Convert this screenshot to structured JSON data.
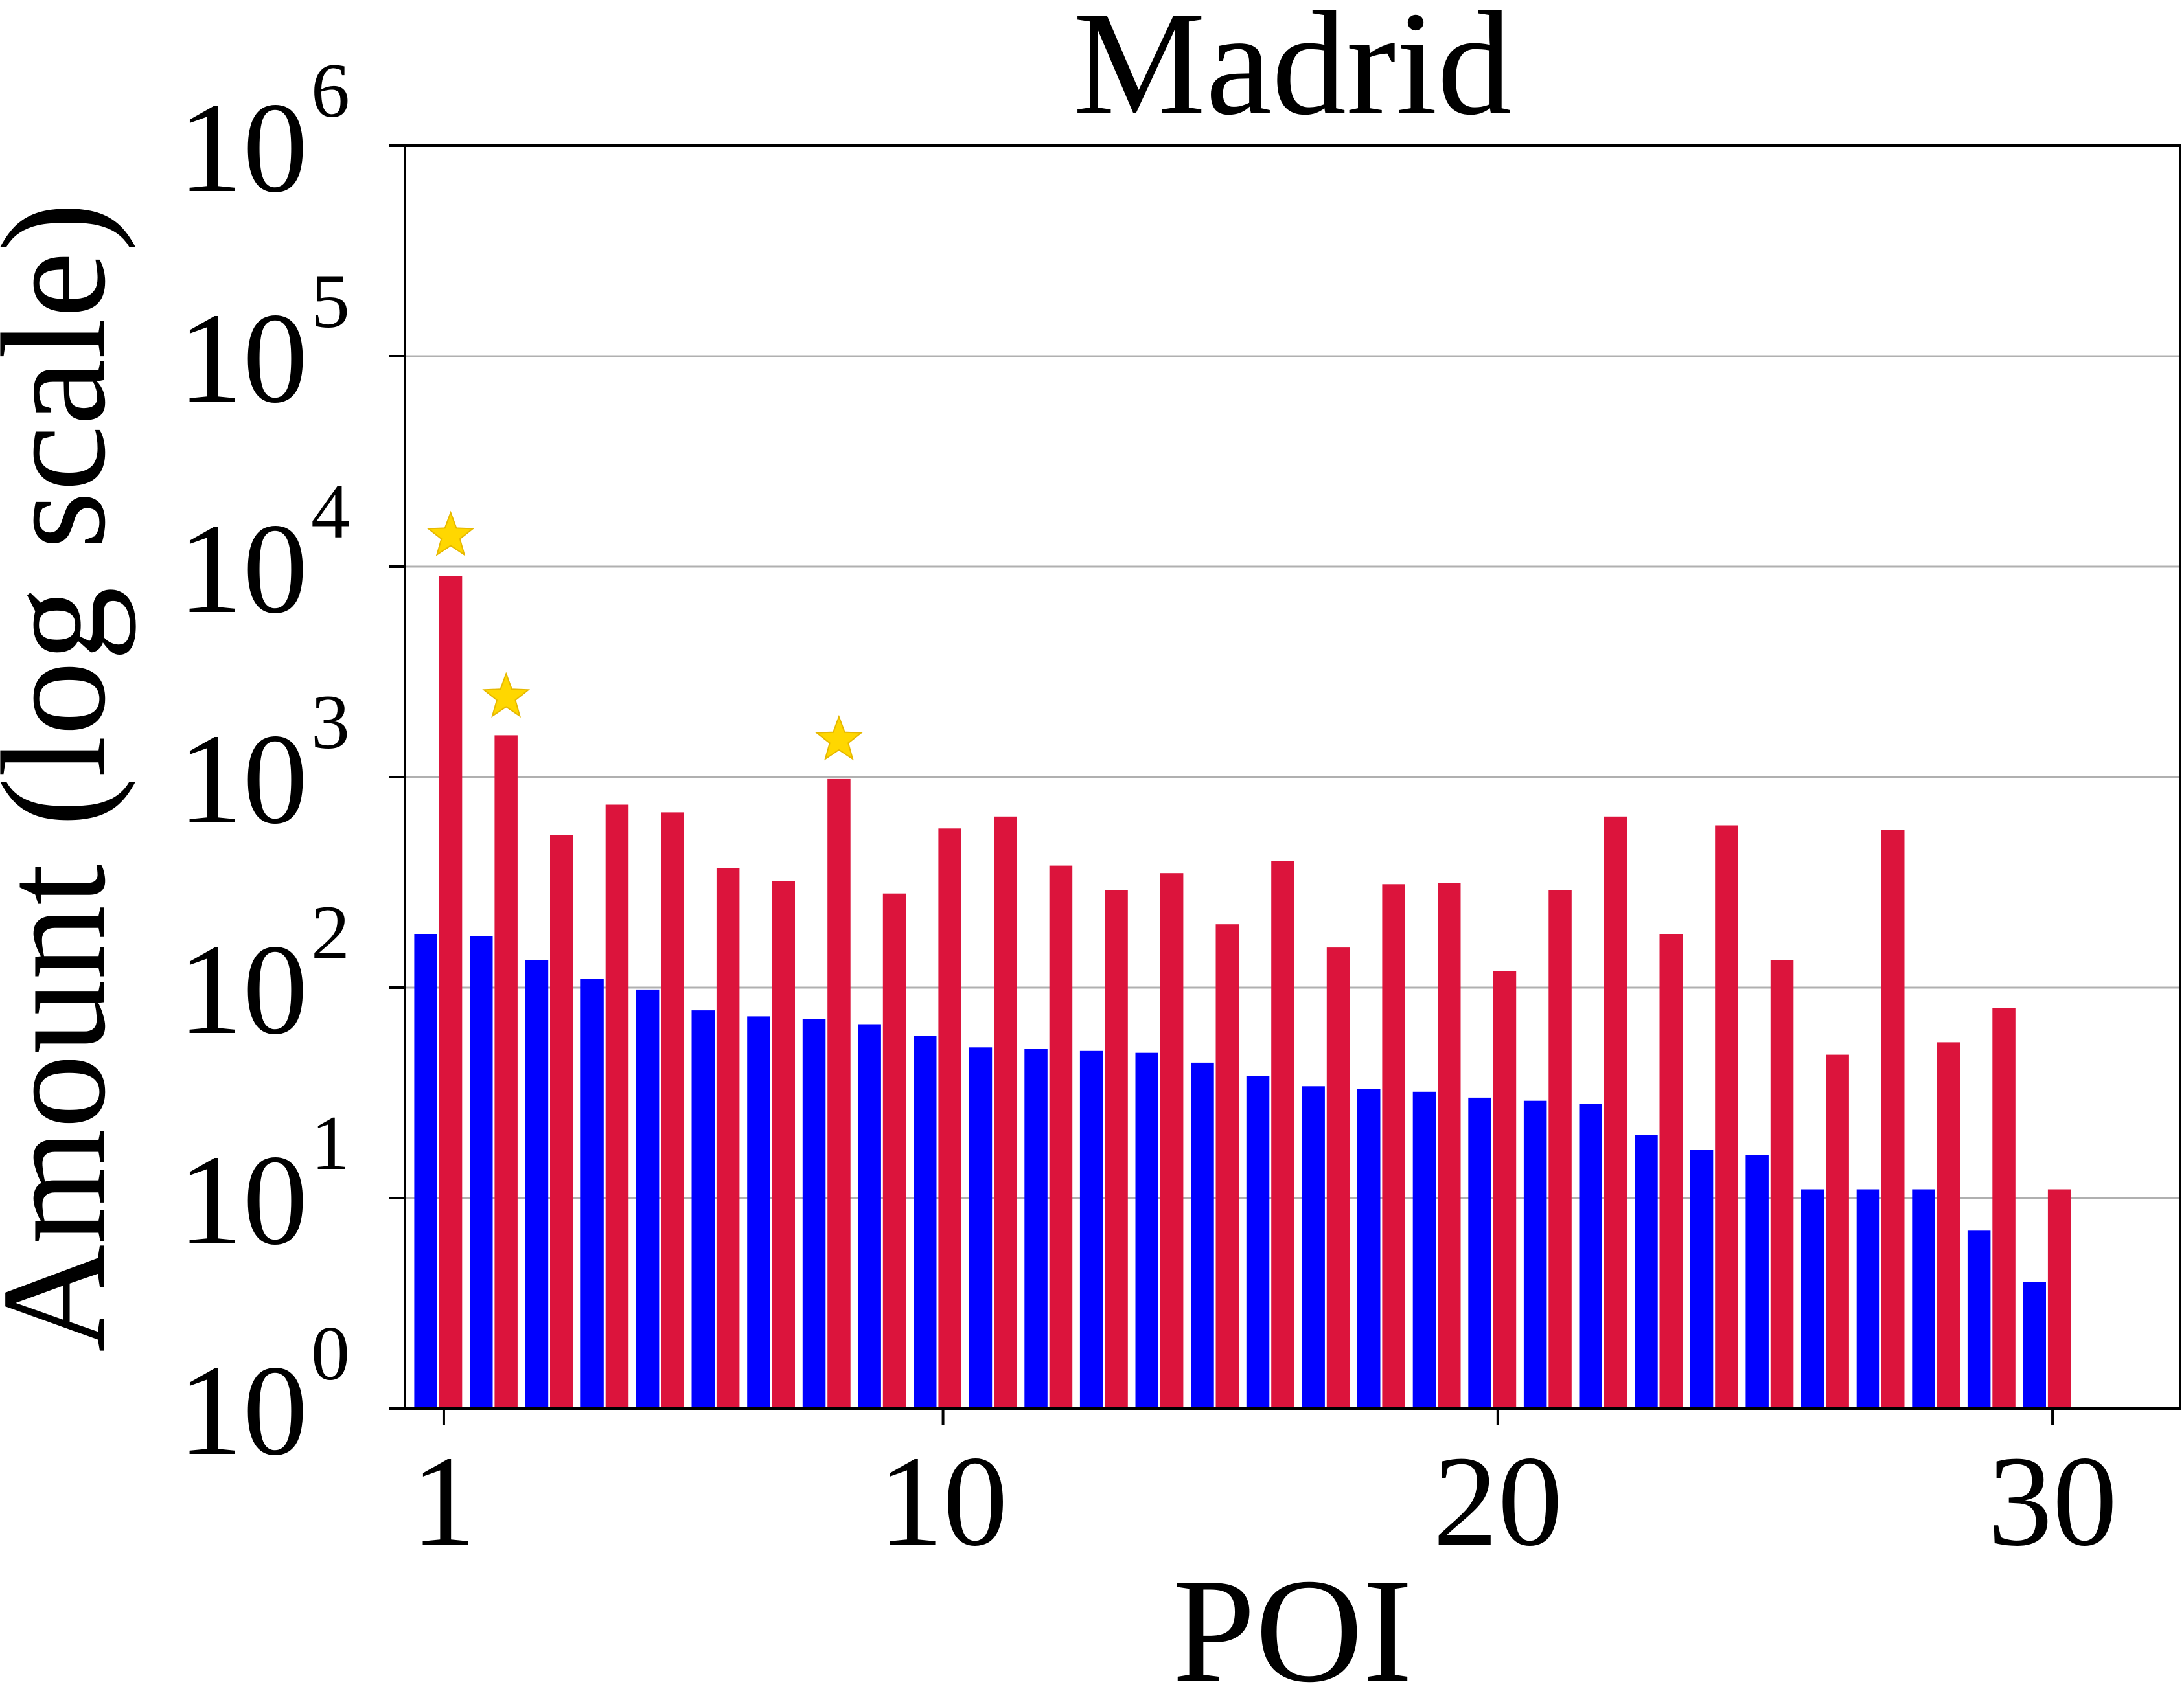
{
  "chart_data": {
    "type": "bar",
    "title": "Madrid",
    "xlabel": "POI",
    "ylabel": "Amount (log scale)",
    "y_scale": "log",
    "ylim": [
      1,
      1000000
    ],
    "xlim": [
      0.3,
      32.3
    ],
    "grid": "horizontal",
    "x_ticks": [
      1,
      10,
      20,
      30
    ],
    "y_ticks": [
      {
        "base": "10",
        "exp": "0"
      },
      {
        "base": "10",
        "exp": "1"
      },
      {
        "base": "10",
        "exp": "2"
      },
      {
        "base": "10",
        "exp": "3"
      },
      {
        "base": "10",
        "exp": "4"
      },
      {
        "base": "10",
        "exp": "5"
      },
      {
        "base": "10",
        "exp": "6"
      }
    ],
    "x": [
      1,
      2,
      3,
      4,
      5,
      6,
      7,
      8,
      9,
      10,
      11,
      12,
      13,
      14,
      15,
      16,
      17,
      18,
      19,
      20,
      21,
      22,
      23,
      24,
      25,
      26,
      27,
      28,
      29,
      30
    ],
    "series": [
      {
        "color": "#0000ff",
        "values": [
          180,
          175,
          135,
          110,
          98,
          78,
          73,
          71,
          67,
          59,
          52,
          51,
          50,
          49,
          44,
          38,
          34,
          33,
          32,
          30,
          29,
          28,
          20,
          17,
          16,
          11,
          11,
          11,
          7,
          4
        ]
      },
      {
        "color": "#dc143c",
        "values": [
          9000,
          1580,
          530,
          740,
          680,
          370,
          320,
          980,
          280,
          570,
          650,
          380,
          290,
          350,
          200,
          400,
          155,
          310,
          315,
          120,
          290,
          650,
          180,
          590,
          135,
          48,
          560,
          55,
          80,
          11
        ]
      }
    ],
    "markers": [
      {
        "type": "star",
        "color": "#ffd700",
        "x": 1,
        "y": 14000
      },
      {
        "type": "star",
        "color": "#ffd700",
        "x": 2,
        "y": 2400
      },
      {
        "type": "star",
        "color": "#ffd700",
        "x": 8,
        "y": 1500
      }
    ]
  }
}
